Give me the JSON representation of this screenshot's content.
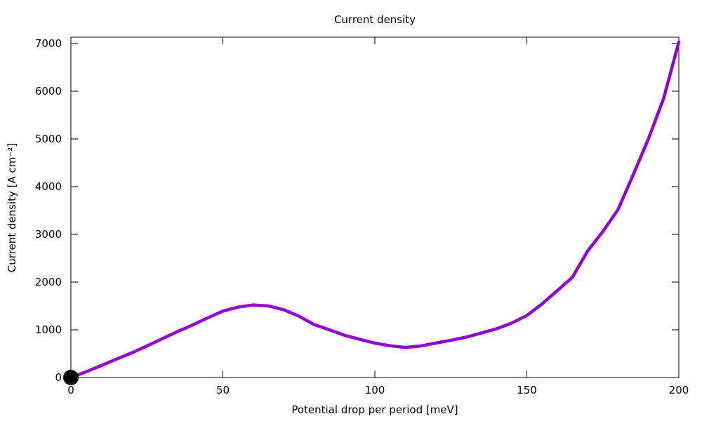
{
  "chart_data": {
    "type": "line",
    "title": "Current density",
    "xlabel": "Potential drop per period [meV]",
    "ylabel": "Current density [A cm⁻²]",
    "xlim": [
      0,
      200
    ],
    "ylim": [
      0,
      7130
    ],
    "xticks": [
      0,
      50,
      100,
      150,
      200
    ],
    "yticks": [
      0,
      1000,
      2000,
      3000,
      4000,
      5000,
      6000,
      7000
    ],
    "grid": false,
    "legend": "none",
    "background_color": "#ffffff",
    "border_color": "#000000",
    "series": [
      {
        "name": "current-density-curve",
        "color": "#9400d3",
        "line_width": 4.5,
        "x": [
          0,
          5,
          10,
          15,
          20,
          25,
          30,
          35,
          40,
          45,
          50,
          55,
          60,
          65,
          70,
          75,
          80,
          85,
          90,
          95,
          100,
          105,
          110,
          115,
          120,
          125,
          130,
          135,
          140,
          145,
          150,
          155,
          160,
          165,
          170,
          175,
          180,
          185,
          190,
          195,
          200
        ],
        "y": [
          0,
          120,
          250,
          385,
          515,
          660,
          810,
          960,
          1100,
          1250,
          1390,
          1475,
          1520,
          1500,
          1420,
          1285,
          1110,
          1000,
          885,
          800,
          720,
          665,
          630,
          660,
          720,
          780,
          845,
          930,
          1020,
          1140,
          1300,
          1540,
          1820,
          2100,
          2650,
          3060,
          3520,
          4250,
          5000,
          5850,
          7030
        ]
      }
    ],
    "markers": [
      {
        "name": "origin-marker",
        "x": 0,
        "y": 0,
        "color": "#000000",
        "radius": 11
      }
    ]
  }
}
